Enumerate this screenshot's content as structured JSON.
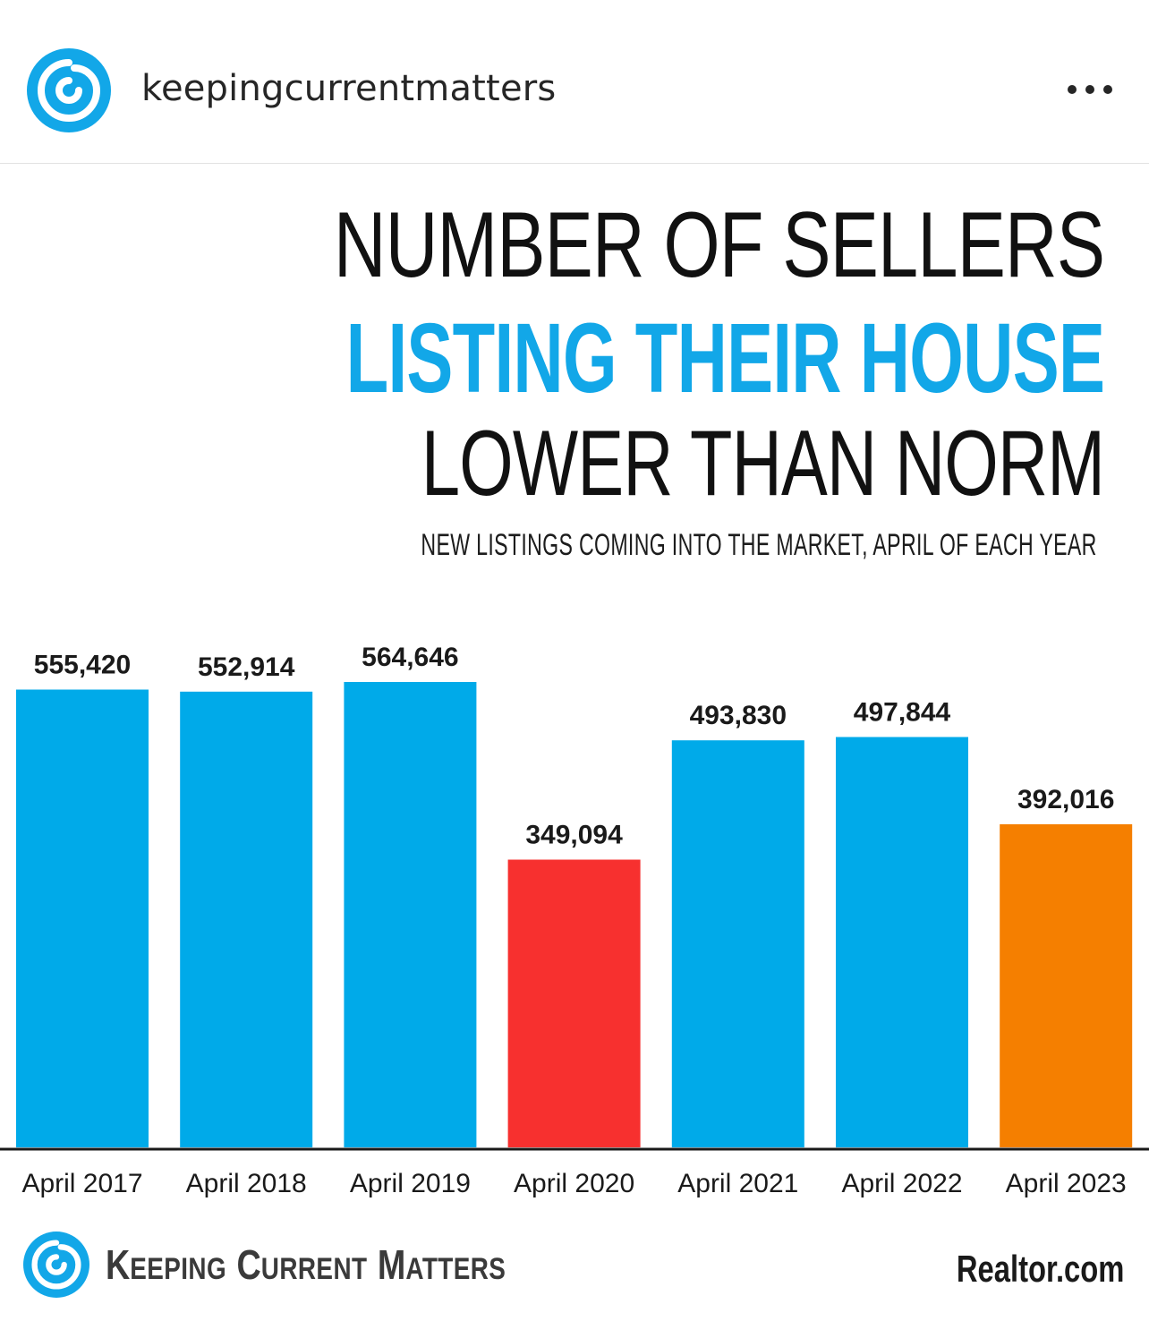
{
  "post": {
    "username": "keepingcurrentmatters",
    "avatar_icon": "kcm-swirl-logo-icon",
    "more_icon": "more-options-icon"
  },
  "infographic": {
    "title_line1": "NUMBER OF SELLERS",
    "title_line2": "LISTING THEIR HOUSE",
    "title_line3": "LOWER THAN NORM",
    "subtitle": "NEW LISTINGS COMING INTO THE MARKET, APRIL OF EACH YEAR",
    "brand": {
      "k": "K",
      "eeping": "EEPING",
      "c": "C",
      "urrent": "URRENT",
      "m": "M",
      "atters": "ATTERS"
    },
    "source": "Realtor.com",
    "colors": {
      "title_accent": "#12a7e8",
      "bar_default": "#00aae9",
      "bar_2020": "#f7302f",
      "bar_2023": "#f57f00"
    }
  },
  "chart_data": {
    "type": "bar",
    "categories": [
      "April 2017",
      "April 2018",
      "April 2019",
      "April 2020",
      "April 2021",
      "April 2022",
      "April 2023"
    ],
    "values": [
      555420,
      552914,
      564646,
      349094,
      493830,
      497844,
      392016
    ],
    "value_labels": [
      "555,420",
      "552,914",
      "564,646",
      "349,094",
      "493,830",
      "497,844",
      "392,016"
    ],
    "colors": [
      "#00aae9",
      "#00aae9",
      "#00aae9",
      "#f7302f",
      "#00aae9",
      "#00aae9",
      "#f57f00"
    ],
    "title": "NUMBER OF SELLERS LISTING THEIR HOUSE LOWER THAN NORM",
    "subtitle": "NEW LISTINGS COMING INTO THE MARKET, APRIL OF EACH YEAR",
    "xlabel": "",
    "ylabel": "",
    "ylim": [
      0,
      600000
    ],
    "grid": false,
    "legend": "none"
  }
}
